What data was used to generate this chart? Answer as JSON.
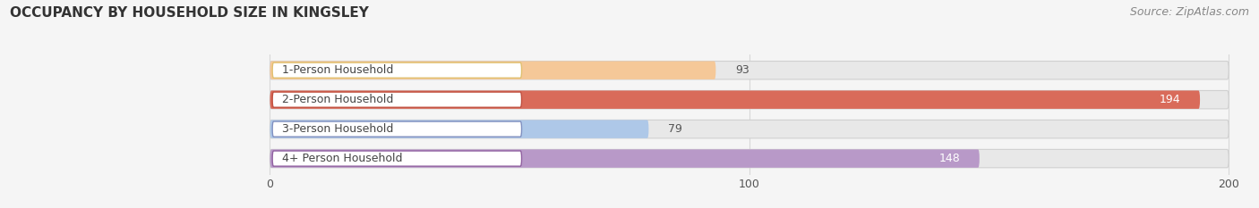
{
  "title": "OCCUPANCY BY HOUSEHOLD SIZE IN KINGSLEY",
  "source": "Source: ZipAtlas.com",
  "categories": [
    "1-Person Household",
    "2-Person Household",
    "3-Person Household",
    "4+ Person Household"
  ],
  "values": [
    93,
    194,
    79,
    148
  ],
  "bar_colors": [
    "#f5c898",
    "#d96b5a",
    "#aec8e8",
    "#b899c8"
  ],
  "xlim": [
    -55,
    205
  ],
  "xticks": [
    0,
    100,
    200
  ],
  "value_label_colors": [
    "#555555",
    "#ffffff",
    "#555555",
    "#ffffff"
  ],
  "value_label_inside": [
    false,
    true,
    false,
    true
  ],
  "title_fontsize": 11,
  "source_fontsize": 9,
  "bar_label_fontsize": 9,
  "tick_fontsize": 9,
  "bar_height": 0.62,
  "bar_gap": 0.38,
  "background_color": "#f5f5f5",
  "track_color": "#e8e8e8",
  "track_edge_color": "#d0d0d0",
  "label_box_color": "white",
  "label_box_edge_colors": [
    "#e0c070",
    "#c05040",
    "#8090c0",
    "#9060a0"
  ],
  "label_text_color": "#444444",
  "grid_color": "#d8d8d8"
}
